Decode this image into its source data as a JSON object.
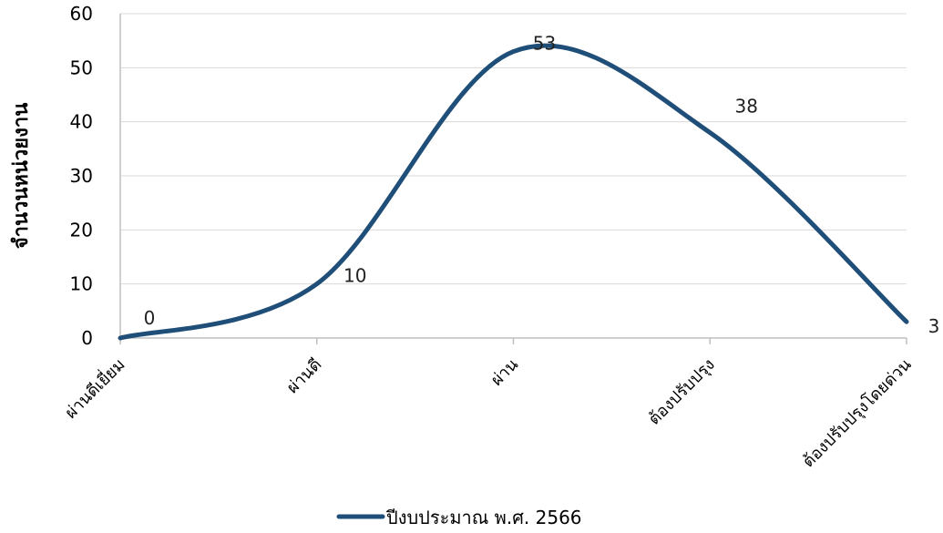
{
  "chart_data": {
    "type": "line",
    "categories": [
      "ผ่านดีเยี่ยม",
      "ผ่านดี",
      "ผ่าน",
      "ต้องปรับปรุง",
      "ต้องปรับปรุงโดยด่วน"
    ],
    "series": [
      {
        "name": "ปีงบประมาณ พ.ศ. 2566",
        "values": [
          0,
          10,
          53,
          38,
          3
        ],
        "color": "#1f4e79",
        "smooth": true
      }
    ],
    "ylabel": "จำนวนหน่วยงาน",
    "xlabel": "",
    "ylim": [
      0,
      60
    ],
    "yticks": [
      0,
      10,
      20,
      30,
      40,
      50,
      60
    ],
    "grid": true,
    "legend_position": "bottom",
    "data_labels": true
  }
}
